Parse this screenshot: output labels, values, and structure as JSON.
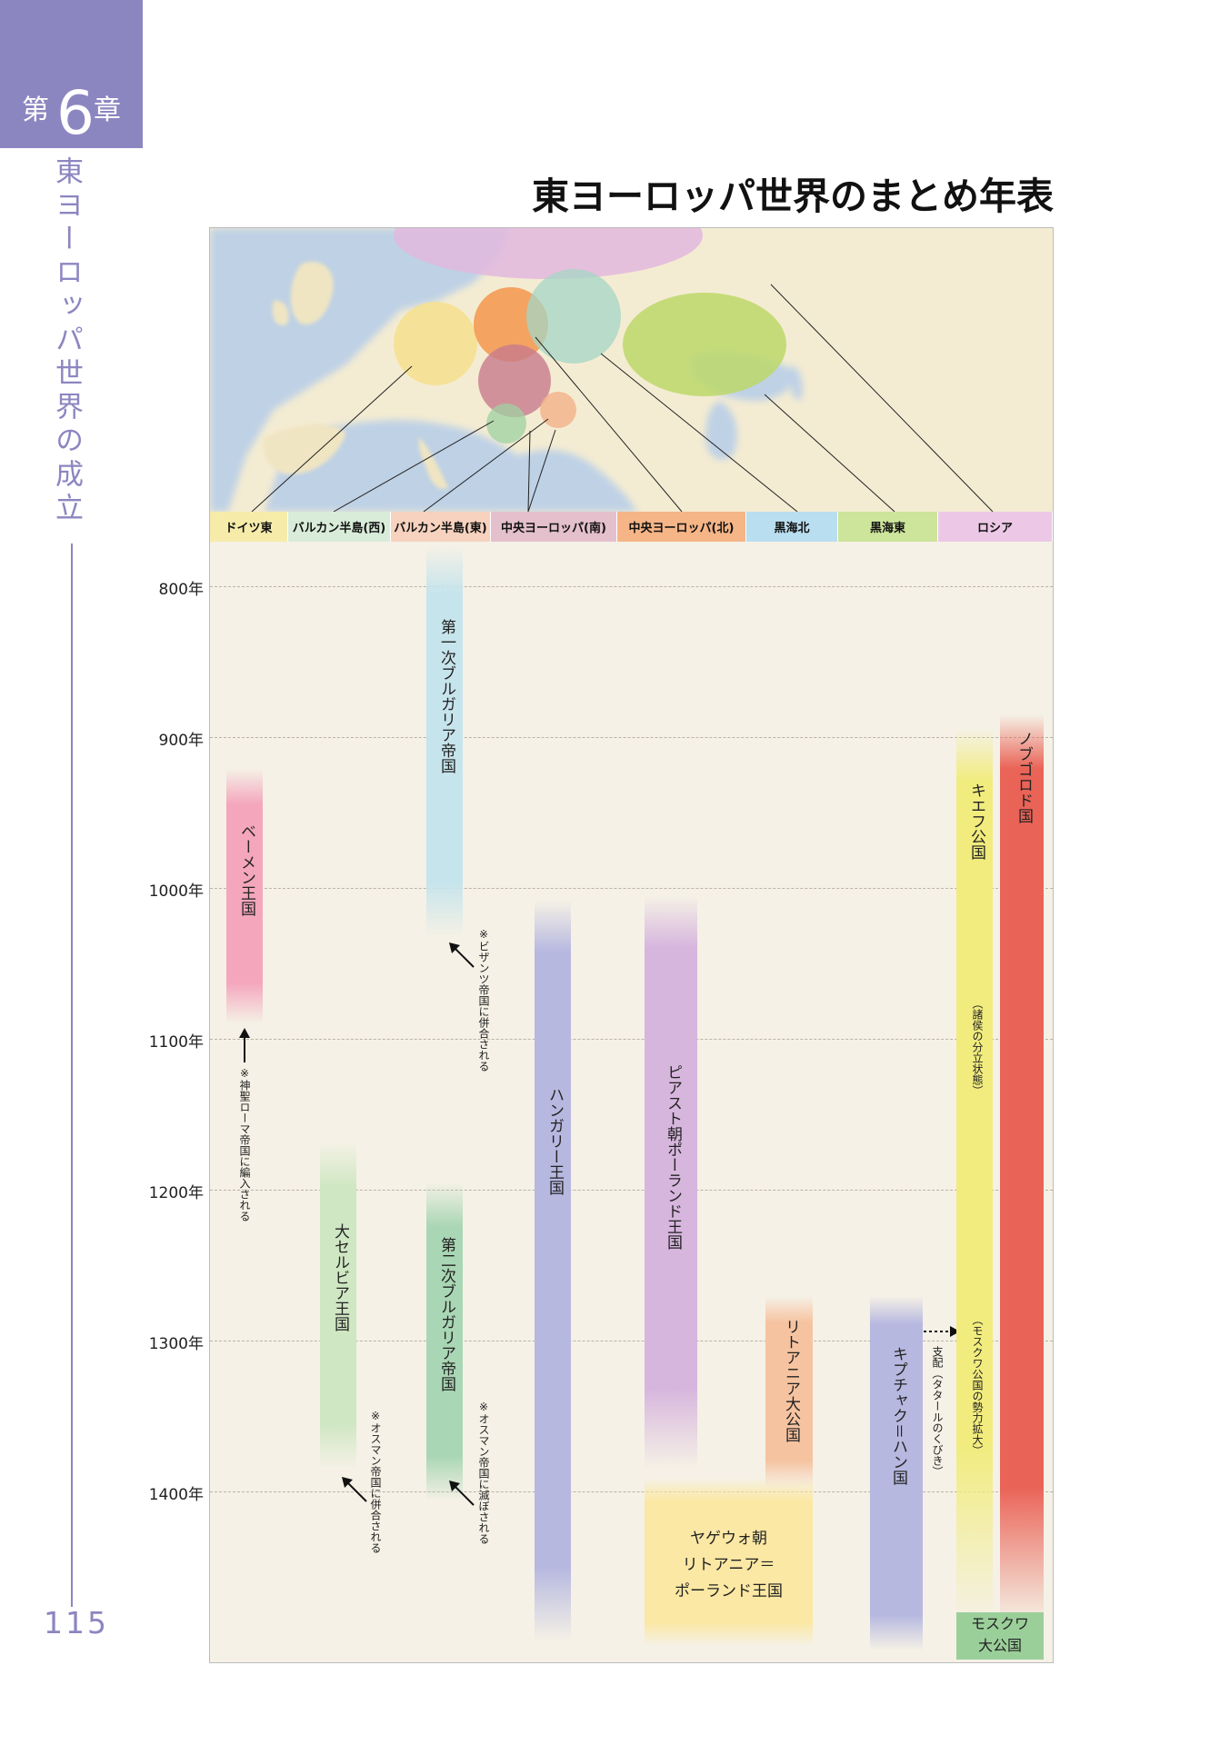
{
  "chapter": {
    "prefix": "第",
    "number": "6",
    "suffix": "章"
  },
  "side_title": "東ヨーロッパ世界の成立",
  "page_number": "115",
  "title": "東ヨーロッパ世界のまとめ年表",
  "colors": {
    "accent": "#8c86c0"
  },
  "regions": [
    "ドイツ東",
    "バルカン半島(西)",
    "バルカン半島(東)",
    "中央ヨーロッパ(南)",
    "中央ヨーロッパ(北)",
    "黒海北",
    "黒海東",
    "ロシア"
  ],
  "years": [
    "800年",
    "900年",
    "1000年",
    "1100年",
    "1200年",
    "1300年",
    "1400年"
  ],
  "states": {
    "bohemia": "ベーメン王国",
    "bulgaria1": "第一次ブルガリア帝国",
    "serbia": "大セルビア王国",
    "bulgaria2": "第二次ブルガリア帝国",
    "hungary": "ハンガリー王国",
    "piast": "ピアスト朝ポーランド王国",
    "jagiellon_1": "ヤゲウォ朝",
    "jagiellon_2": "リトアニア＝",
    "jagiellon_3": "ポーランド王国",
    "lithuania": "リトアニア大公国",
    "kipchak": "キプチャク＝ハン国",
    "kiev": "キエフ公国",
    "kiev_note1": "（諸侯の分立状態）",
    "kiev_note2": "（モスクワ公国の勢力拡大）",
    "novgorod": "ノブゴロド国",
    "moscow_1": "モスクワ",
    "moscow_2": "大公国"
  },
  "notes": {
    "bohemia": "※神聖ローマ帝国に編入される",
    "bulgaria1": "※ビザンツ帝国に併合される",
    "serbia": "※オスマン帝国に併合される",
    "bulgaria2": "※オスマン帝国に滅ぼされる",
    "tatar": "支配（タタールのくびき）"
  }
}
